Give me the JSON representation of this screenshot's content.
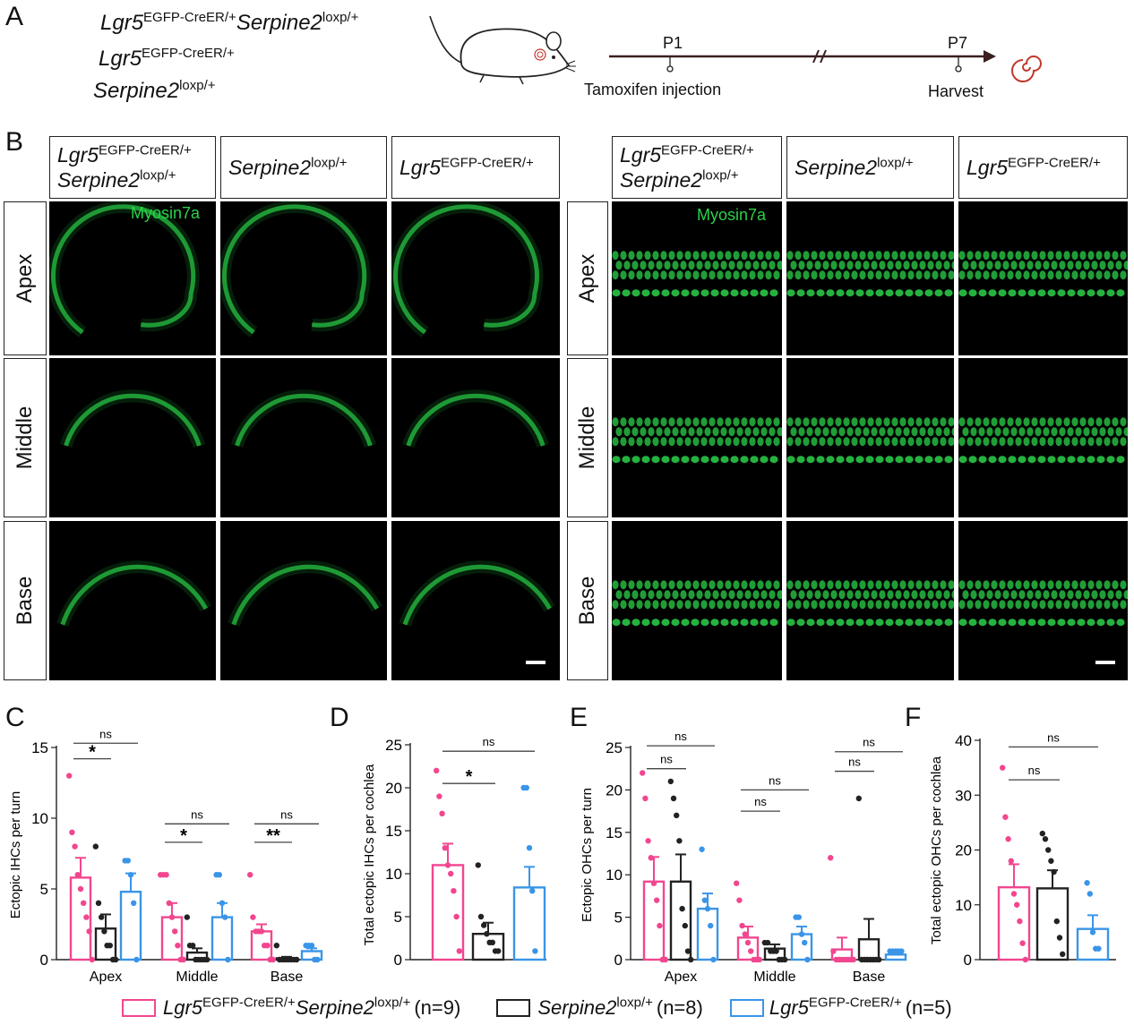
{
  "panelA": {
    "letter": "A",
    "genotypes": [
      {
        "gene": "Lgr5",
        "sup": "EGFP-CreER/+",
        "gene2": "Serpine2",
        "sup2": "loxp/+"
      },
      {
        "gene": "Lgr5",
        "sup": "EGFP-CreER/+"
      },
      {
        "gene": "Serpine2",
        "sup": "loxp/+"
      }
    ],
    "timeline": {
      "p1": "P1",
      "p7": "P7",
      "event1": "Tamoxifen injection",
      "event2": "Harvest",
      "break": "//"
    }
  },
  "panelB": {
    "letter": "B",
    "headers": [
      {
        "gene": "Lgr5",
        "sup": "EGFP-CreER/+",
        "gene2": "Serpine2",
        "sup2": "loxp/+"
      },
      {
        "gene": "Serpine2",
        "sup": "loxp/+"
      },
      {
        "gene": "Lgr5",
        "sup": "EGFP-CreER/+"
      }
    ],
    "rows": [
      "Apex",
      "Middle",
      "Base"
    ],
    "stain": "Myosin7a"
  },
  "panelC": {
    "letter": "C",
    "ylabel": "Ectopic IHCs per turn"
  },
  "panelD": {
    "letter": "D",
    "ylabel": "Total ectopic IHCs per cochlea"
  },
  "panelE": {
    "letter": "E",
    "ylabel": "Ectopic OHCs per turn"
  },
  "panelF": {
    "letter": "F",
    "ylabel": "Total ectopic OHCs per cochlea"
  },
  "legend": [
    {
      "gene": "Lgr5",
      "sup": "EGFP-CreER/+",
      "gene2": "Serpine2",
      "sup2": "loxp/+",
      "n": "(n=9)",
      "color": "#f2468f"
    },
    {
      "gene": "Serpine2",
      "sup": "loxp/+",
      "n": "(n=8)",
      "color": "#222222"
    },
    {
      "gene": "Lgr5",
      "sup": "EGFP-CreER/+",
      "n": "(n=5)",
      "color": "#3a95e8"
    }
  ],
  "colors": {
    "pink": "#f2468f",
    "black": "#222222",
    "blue": "#3a95e8",
    "green": "#2bd14a"
  },
  "chart_data": [
    {
      "type": "bar",
      "id": "C",
      "ylabel": "Ectopic IHCs per turn",
      "ylim": [
        0,
        15
      ],
      "yticks": [
        0,
        5,
        10,
        15
      ],
      "categories": [
        "Apex",
        "Middle",
        "Base"
      ],
      "series": [
        {
          "name": "Lgr5 EGFP-CreER/+ Serpine2 loxp/+",
          "values": [
            5.8,
            3.0,
            2.0
          ],
          "err": [
            1.4,
            1.0,
            0.5
          ],
          "points": [
            [
              13,
              9,
              8,
              6,
              5,
              4,
              3,
              2,
              0
            ],
            [
              6,
              6,
              6,
              4,
              3,
              2,
              1,
              0,
              0
            ],
            [
              6,
              3,
              2,
              2,
              2,
              1,
              1,
              0,
              0
            ]
          ]
        },
        {
          "name": "Serpine2 loxp/+",
          "values": [
            2.2,
            0.5,
            0.1
          ],
          "err": [
            1.0,
            0.3,
            0.1
          ],
          "points": [
            [
              8,
              4,
              3,
              2,
              1,
              1,
              0,
              0
            ],
            [
              3,
              1,
              1,
              0,
              0,
              0,
              0,
              0
            ],
            [
              1,
              0,
              0,
              0,
              0,
              0,
              0,
              0
            ]
          ]
        },
        {
          "name": "Lgr5 EGFP-CreER/+",
          "values": [
            4.8,
            3.0,
            0.6
          ],
          "err": [
            1.3,
            1.0,
            0.2
          ],
          "points": [
            [
              7,
              7,
              6,
              4,
              0
            ],
            [
              6,
              6,
              4,
              3,
              0
            ],
            [
              1,
              1,
              1,
              0,
              0
            ]
          ]
        }
      ],
      "sig": [
        [
          "Apex",
          "*",
          "ns"
        ],
        [
          "Middle",
          "*",
          "ns"
        ],
        [
          "Base",
          "**",
          "ns"
        ]
      ]
    },
    {
      "type": "bar",
      "id": "D",
      "ylabel": "Total ectopic IHCs per cochlea",
      "ylim": [
        0,
        25
      ],
      "yticks": [
        0,
        5,
        10,
        15,
        20,
        25
      ],
      "categories": [
        "Lgr5 EGFP-CreER/+ Serpine2 loxp/+",
        "Serpine2 loxp/+",
        "Lgr5 EGFP-CreER/+"
      ],
      "values": [
        11.0,
        3.0,
        8.4
      ],
      "err": [
        2.5,
        1.3,
        2.4
      ],
      "points": [
        [
          22,
          19,
          17,
          13,
          11,
          10,
          8,
          5,
          1
        ],
        [
          11,
          5,
          4,
          3,
          2,
          2,
          1,
          1
        ],
        [
          20,
          20,
          13,
          8,
          1
        ]
      ],
      "sig": [
        "*",
        "ns"
      ]
    },
    {
      "type": "bar",
      "id": "E",
      "ylabel": "Ectopic OHCs per turn",
      "ylim": [
        0,
        25
      ],
      "yticks": [
        0,
        5,
        10,
        15,
        20,
        25
      ],
      "categories": [
        "Apex",
        "Middle",
        "Base"
      ],
      "series": [
        {
          "name": "Lgr5 EGFP-CreER/+ Serpine2 loxp/+",
          "values": [
            9.2,
            2.6,
            1.2
          ],
          "err": [
            2.9,
            1.3,
            1.4
          ],
          "points": [
            [
              22,
              19,
              14,
              12,
              9,
              7,
              4,
              0,
              0
            ],
            [
              9,
              7,
              4,
              3,
              2,
              1,
              0,
              0,
              0
            ],
            [
              12,
              1,
              0,
              0,
              0,
              0,
              0,
              0,
              0
            ]
          ]
        },
        {
          "name": "Serpine2 loxp/+",
          "values": [
            9.2,
            1.3,
            2.4
          ],
          "err": [
            3.2,
            0.5,
            2.4
          ],
          "points": [
            [
              21,
              19,
              17,
              14,
              6,
              4,
              1,
              0
            ],
            [
              2,
              2,
              1,
              1,
              1,
              0,
              0,
              0
            ],
            [
              19,
              0,
              0,
              0,
              0,
              0,
              0,
              0
            ]
          ]
        },
        {
          "name": "Lgr5 EGFP-CreER/+",
          "values": [
            6.0,
            3.0,
            0.6
          ],
          "err": [
            1.8,
            0.9,
            0.2
          ],
          "points": [
            [
              13,
              7,
              6,
              4,
              0
            ],
            [
              5,
              5,
              3,
              2,
              0
            ],
            [
              1,
              1,
              1,
              1,
              1
            ]
          ]
        }
      ],
      "sig": [
        [
          "Apex",
          "ns",
          "ns"
        ],
        [
          "Middle",
          "ns",
          "ns"
        ],
        [
          "Base",
          "ns",
          "ns"
        ]
      ]
    },
    {
      "type": "bar",
      "id": "F",
      "ylabel": "Total ectopic OHCs per cochlea",
      "ylim": [
        0,
        40
      ],
      "yticks": [
        0,
        10,
        20,
        30,
        40
      ],
      "categories": [
        "Lgr5 EGFP-CreER/+ Serpine2 loxp/+",
        "Serpine2 loxp/+",
        "Lgr5 EGFP-CreER/+"
      ],
      "values": [
        13.2,
        13.0,
        5.6
      ],
      "err": [
        4.2,
        3.3,
        2.5
      ],
      "points": [
        [
          35,
          26,
          22,
          18,
          12,
          10,
          7,
          3,
          0
        ],
        [
          23,
          22,
          20,
          18,
          16,
          7,
          4,
          1
        ],
        [
          14,
          12,
          5,
          2,
          2
        ]
      ],
      "sig": [
        "ns",
        "ns"
      ]
    }
  ]
}
